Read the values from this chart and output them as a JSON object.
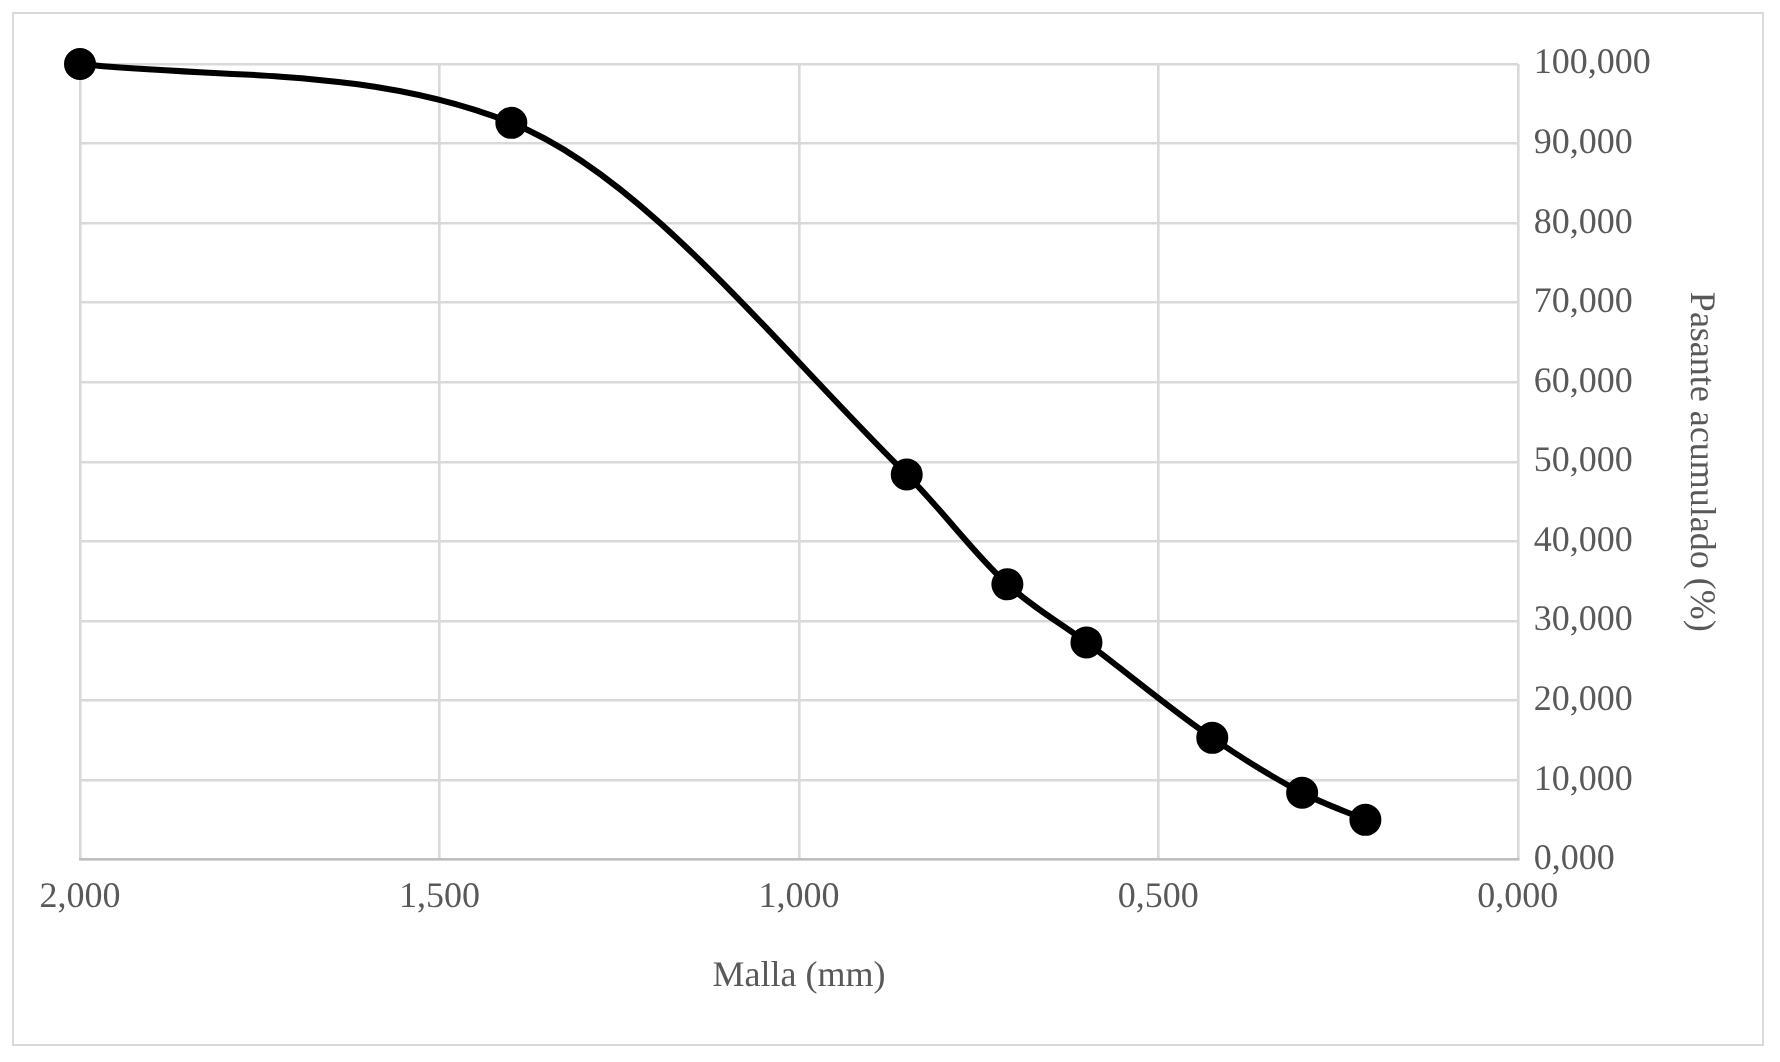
{
  "chart_data": {
    "type": "line",
    "xlabel": "Malla (mm)",
    "ylabel": "Pasante acumulado (%)",
    "x": [
      2.0,
      1.4,
      0.85,
      0.71,
      0.6,
      0.425,
      0.3,
      0.212
    ],
    "series": [
      {
        "color": "#000000",
        "values": [
          100,
          92.6,
          48.4,
          34.6,
          27.3,
          15.3,
          8.4,
          5.0
        ]
      }
    ],
    "xlim": [
      2,
      0
    ],
    "xticks": [
      {
        "value": 2,
        "label": "2,000"
      },
      {
        "value": 1.5,
        "label": "1,500"
      },
      {
        "value": 1,
        "label": "1,000"
      },
      {
        "value": 0.5,
        "label": "0,500"
      },
      {
        "value": 0,
        "label": "0,000"
      }
    ],
    "ylim": [
      0,
      100
    ],
    "yticks": [
      {
        "value": 0,
        "label": "0,000"
      },
      {
        "value": 10,
        "label": "10,000"
      },
      {
        "value": 20,
        "label": "20,000"
      },
      {
        "value": 30,
        "label": "30,000"
      },
      {
        "value": 40,
        "label": "40,000"
      },
      {
        "value": 50,
        "label": "50,000"
      },
      {
        "value": 60,
        "label": "60,000"
      },
      {
        "value": 70,
        "label": "70,000"
      },
      {
        "value": 80,
        "label": "80,000"
      },
      {
        "value": 90,
        "label": "90,000"
      },
      {
        "value": 100,
        "label": "100,000"
      }
    ],
    "grid": true,
    "marker": "circle",
    "line_style": "solid",
    "legend": false
  }
}
